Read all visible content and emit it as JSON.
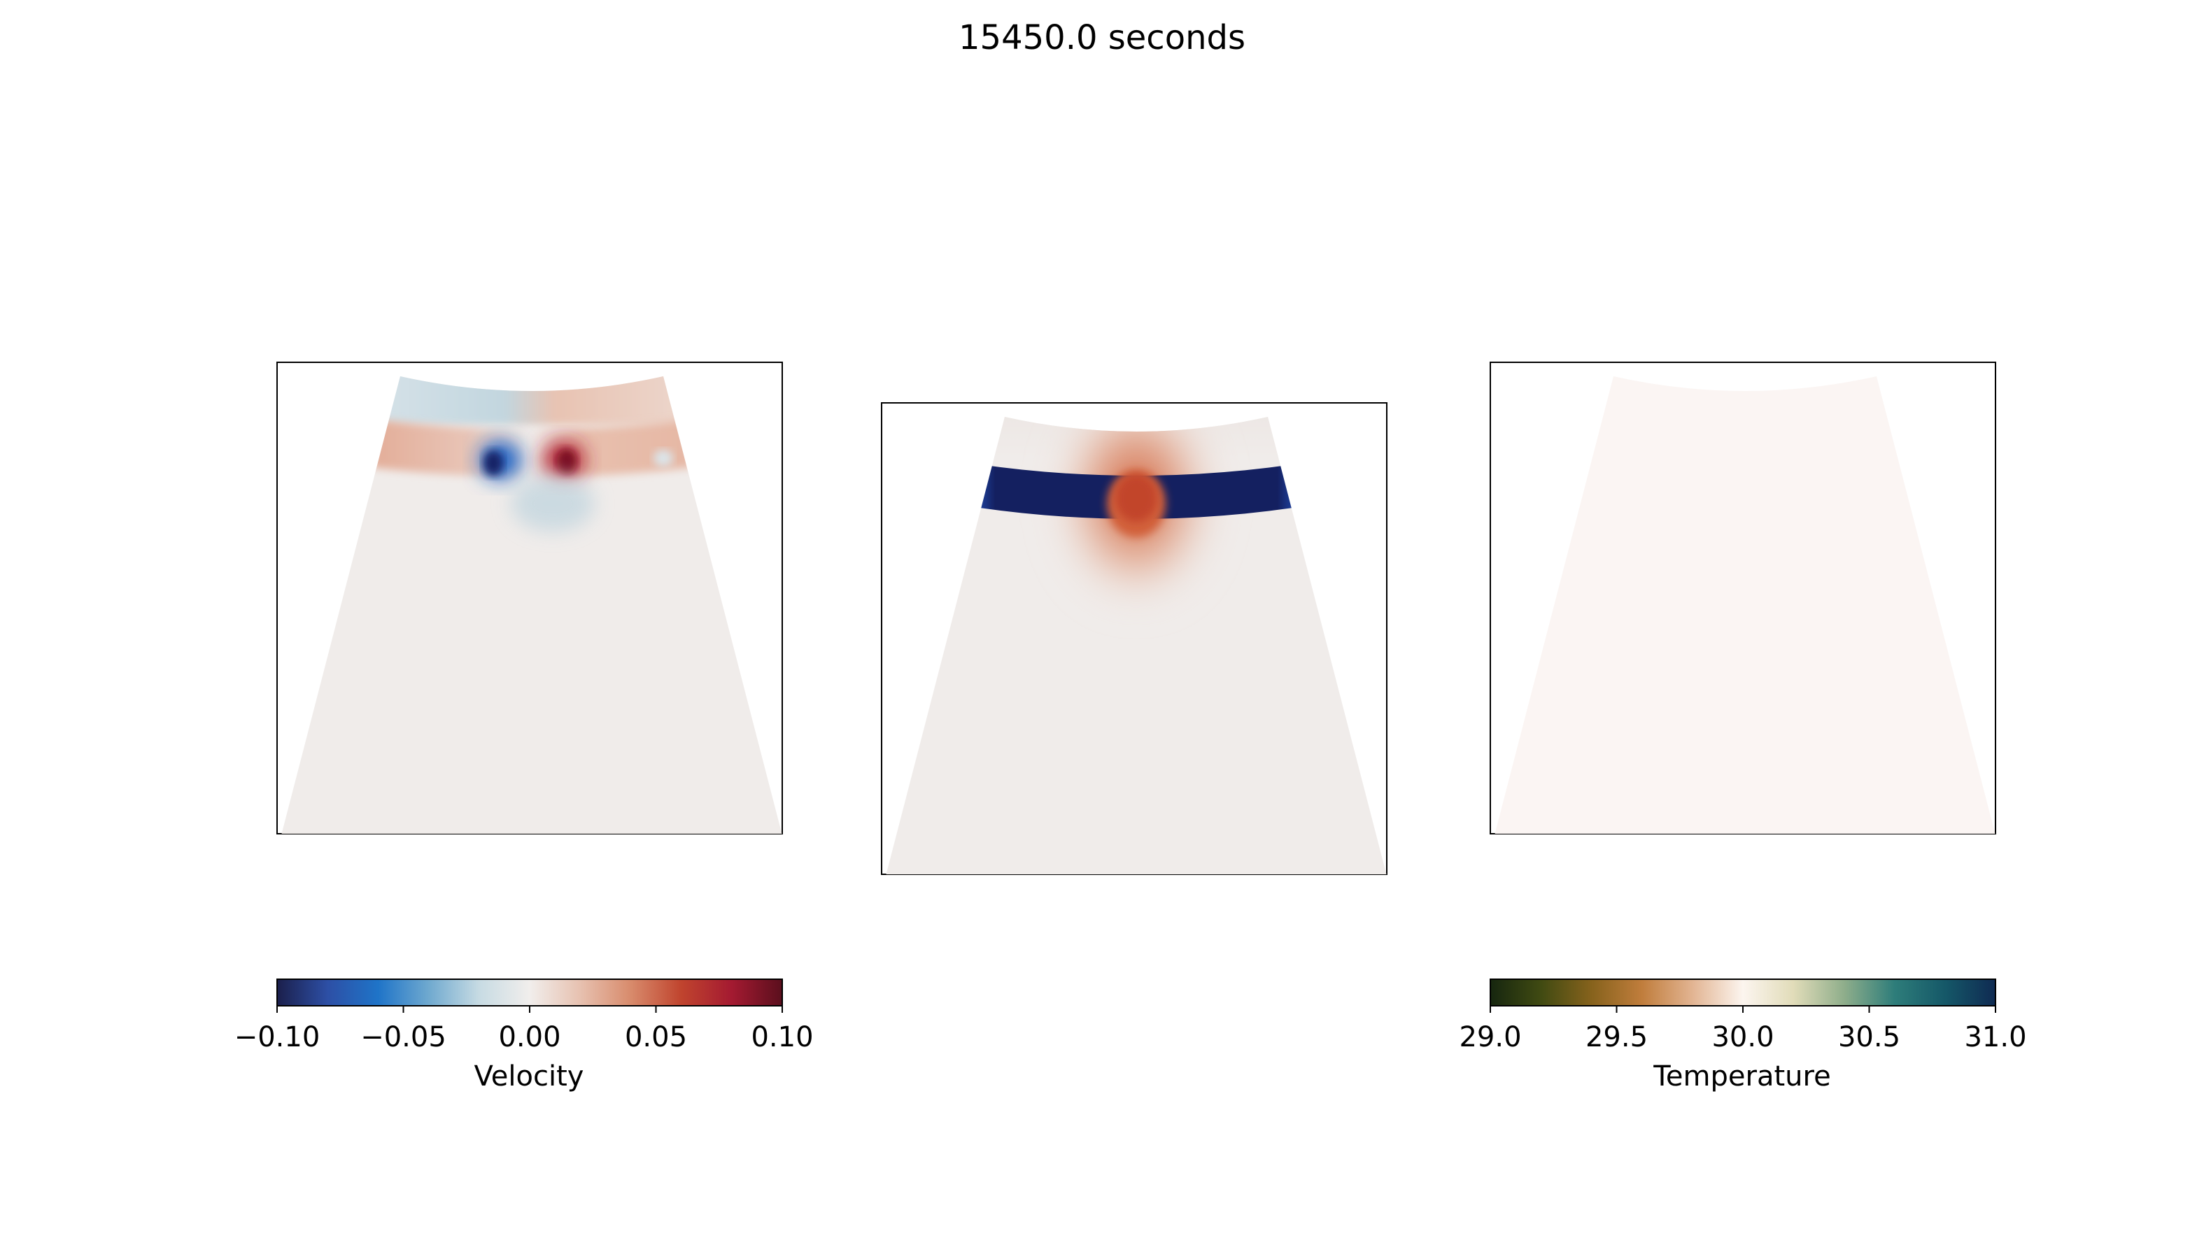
{
  "figure_title": "15450.0 seconds",
  "chart_data": [
    {
      "type": "heatmap",
      "panel": "left",
      "quantity": "Velocity",
      "domain_shape": "trapezoid, narrow curved top, wide bottom",
      "colormap": "balance",
      "clim": [
        -0.1,
        0.1
      ],
      "field": "horizontal velocity: light blue above band at left, light red above band at right; red band segment left of centre and right, strong blue and red dipole at centre of band (~-0.08 and ~+0.09), faint blue below centre; near-zero slightly positive elsewhere"
    },
    {
      "type": "heatmap",
      "panel": "middle",
      "quantity": "Velocity",
      "domain_shape": "trapezoid, narrow curved top, wide bottom",
      "colormap": "balance",
      "clim": [
        -0.1,
        0.1
      ],
      "field": "dark blue horizontal band (~-0.10) across upper third, interrupted at centre by red column (~+0.06) extending above and below band; near-zero elsewhere"
    },
    {
      "type": "heatmap",
      "panel": "right",
      "quantity": "Temperature",
      "domain_shape": "trapezoid, narrow curved top, wide bottom",
      "colormap": "delta",
      "clim": [
        29.0,
        31.0
      ],
      "field": "uniform ~30.0"
    }
  ],
  "colorbars": [
    {
      "label": "Velocity",
      "ticks": [
        "−0.10",
        "−0.05",
        "0.00",
        "0.05",
        "0.10"
      ],
      "range": [
        -0.1,
        0.1
      ],
      "colors": [
        "#1b1f4b",
        "#2d4fa5",
        "#1f74c8",
        "#6fa9cf",
        "#c7dbe3",
        "#f1eeec",
        "#e7c1b0",
        "#d88b6c",
        "#c0442e",
        "#a41a31",
        "#5a0f1d"
      ]
    },
    {
      "label": "Temperature",
      "ticks": [
        "29.0",
        "29.5",
        "30.0",
        "30.5",
        "31.0"
      ],
      "range": [
        29.0,
        31.0
      ],
      "colors": [
        "#16260f",
        "#404a12",
        "#86621c",
        "#c07d3c",
        "#e2b492",
        "#fcf5ef",
        "#e1dcb9",
        "#8fae8b",
        "#2e7d7a",
        "#155868",
        "#0f2a52"
      ]
    }
  ],
  "colors": {
    "background_fill": "#f0ecea",
    "temperature_fill": "#fbf5f3",
    "deep_blue": "#162466",
    "bright_blue": "#1f62c4",
    "red": "#c9432c",
    "dark_red": "#8e0f24",
    "light_red": "#e3b5a1",
    "light_blue": "#c5d7e0"
  }
}
